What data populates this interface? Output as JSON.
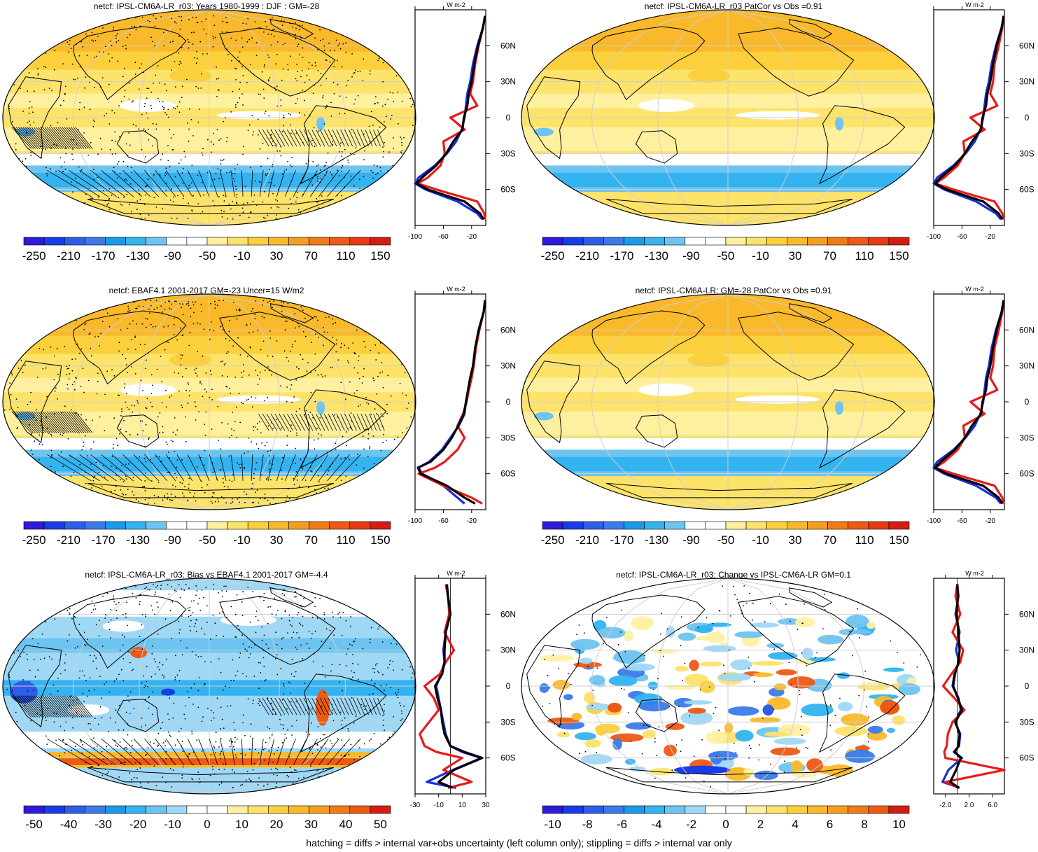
{
  "footer": "hatching = diffs > internal var+obs uncertainty (left column only); stippling = diffs > internal var only",
  "colors": {
    "main_scale": [
      "#2e1ad9",
      "#1a3ce6",
      "#2d5ee8",
      "#3a7be8",
      "#1a9bea",
      "#33b3f0",
      "#6ec4f0",
      "#ffffff",
      "#ffffff",
      "#fff0a0",
      "#fde36a",
      "#fbd03c",
      "#f9b92a",
      "#f59d20",
      "#f07c18",
      "#ec5a14",
      "#e83a12",
      "#d41c12"
    ],
    "diff_scale": [
      "#2e1ad9",
      "#1a3ce6",
      "#2d5ee8",
      "#3a7be8",
      "#1a9bea",
      "#33b3f0",
      "#6ec4f0",
      "#9fd8f5",
      "#ffffff",
      "#ffffff",
      "#fff0a0",
      "#fde36a",
      "#fbd03c",
      "#f9b92a",
      "#f59d20",
      "#f07c18",
      "#ec5a14",
      "#d41c12"
    ],
    "line_model": "#1a2fd6",
    "line_obs": "#e81a1a",
    "line_mean": "#000000",
    "land_outline": "#000000",
    "graticule": "#cfcfcf"
  },
  "chart_data": [
    {
      "type": "heatmap",
      "title": "netcf: IPSL-CM6A-LR_r03: Years 1980-1999 : DJF : GM=-28",
      "map_style": "main",
      "stipple": true,
      "hatch": true,
      "colorbar_labels": [
        "-250",
        "-210",
        "-170",
        "-130",
        "-90",
        "-50",
        "-10",
        "30",
        "70",
        "110",
        "150"
      ],
      "profile": {
        "units": "W m-2",
        "x_ticks": [
          "-100",
          "-60",
          "-20"
        ],
        "xlim": [
          -100,
          0
        ],
        "lat_labels": [
          "60N",
          "30N",
          "0",
          "30S",
          "60S"
        ],
        "lat": [
          85,
          75,
          60,
          45,
          30,
          20,
          10,
          0,
          -10,
          -20,
          -30,
          -40,
          -50,
          -55,
          -60,
          -70,
          -80,
          -85
        ],
        "model": [
          -1,
          -4,
          -12,
          -18,
          -22,
          -26,
          -28,
          -30,
          -34,
          -42,
          -55,
          -72,
          -95,
          -100,
          -85,
          -40,
          -12,
          -5
        ],
        "obs": [
          -1,
          -4,
          -10,
          -15,
          -18,
          -22,
          -12,
          -50,
          -30,
          -60,
          -58,
          -64,
          -82,
          -96,
          -70,
          -12,
          -2,
          -1
        ],
        "mean": [
          -1,
          -4,
          -11,
          -16,
          -20,
          -24,
          -26,
          -31,
          -33,
          -46,
          -56,
          -70,
          -90,
          -98,
          -82,
          -30,
          -8,
          -3
        ]
      }
    },
    {
      "type": "heatmap",
      "title": "netcf: IPSL-CM6A-LR_r03 PatCor vs Obs =0.91",
      "map_style": "main",
      "stipple": false,
      "hatch": false,
      "colorbar_labels": [
        "-250",
        "-210",
        "-170",
        "-130",
        "-90",
        "-50",
        "-10",
        "30",
        "70",
        "110",
        "150"
      ],
      "profile": {
        "units": "W m-2",
        "x_ticks": [
          "-100",
          "-60",
          "-20"
        ],
        "xlim": [
          -100,
          0
        ],
        "lat_labels": [
          "60N",
          "30N",
          "0",
          "30S",
          "60S"
        ],
        "lat": [
          85,
          75,
          60,
          45,
          30,
          20,
          10,
          0,
          -10,
          -20,
          -30,
          -40,
          -50,
          -55,
          -60,
          -70,
          -80,
          -85
        ],
        "model": [
          -1,
          -4,
          -12,
          -18,
          -22,
          -26,
          -28,
          -30,
          -34,
          -42,
          -55,
          -72,
          -95,
          -100,
          -85,
          -40,
          -12,
          -5
        ],
        "obs": [
          -1,
          -3,
          -8,
          -14,
          -16,
          -20,
          -10,
          -48,
          -28,
          -58,
          -56,
          -66,
          -85,
          -98,
          -72,
          -14,
          -3,
          -1
        ],
        "mean": [
          -1,
          -4,
          -11,
          -16,
          -20,
          -24,
          -26,
          -31,
          -33,
          -46,
          -56,
          -70,
          -90,
          -98,
          -82,
          -30,
          -8,
          -3
        ]
      }
    },
    {
      "type": "heatmap",
      "title": "netcf: EBAF4.1 2001-2017 GM=-23 Uncer=15 W/m2",
      "map_style": "obs",
      "stipple": true,
      "hatch": true,
      "colorbar_labels": [
        "-250",
        "-210",
        "-170",
        "-130",
        "-90",
        "-50",
        "-10",
        "30",
        "70",
        "110",
        "150"
      ],
      "profile": {
        "units": "W m-2",
        "x_ticks": [
          "-100",
          "-60",
          "-20"
        ],
        "xlim": [
          -100,
          0
        ],
        "lat_labels": [
          "60N",
          "30N",
          "0",
          "30S",
          "60S"
        ],
        "lat": [
          85,
          75,
          60,
          45,
          30,
          20,
          10,
          0,
          -10,
          -20,
          -30,
          -40,
          -50,
          -55,
          -60,
          -70,
          -80,
          -85
        ],
        "model": [
          -1,
          -3,
          -10,
          -15,
          -18,
          -22,
          -25,
          -28,
          -30,
          -38,
          -50,
          -62,
          -80,
          -95,
          -90,
          -60,
          -40,
          -30
        ],
        "obs": [
          -1,
          -3,
          -9,
          -14,
          -17,
          -20,
          -24,
          -27,
          -32,
          -40,
          -30,
          -40,
          -58,
          -72,
          -95,
          -60,
          -20,
          -5
        ],
        "mean": [
          -1,
          -3,
          -10,
          -15,
          -18,
          -22,
          -25,
          -28,
          -31,
          -39,
          -48,
          -60,
          -78,
          -96,
          -92,
          -55,
          -30,
          -15
        ]
      }
    },
    {
      "type": "heatmap",
      "title": "netcf: IPSL-CM6A-LR: GM=-28 PatCor vs Obs =0.91",
      "map_style": "main",
      "stipple": false,
      "hatch": false,
      "colorbar_labels": [
        "-250",
        "-210",
        "-170",
        "-130",
        "-90",
        "-50",
        "-10",
        "30",
        "70",
        "110",
        "150"
      ],
      "profile": {
        "units": "W m-2",
        "x_ticks": [
          "-100",
          "-60",
          "-20"
        ],
        "xlim": [
          -100,
          0
        ],
        "lat_labels": [
          "60N",
          "30N",
          "0",
          "30S",
          "60S"
        ],
        "lat": [
          85,
          75,
          60,
          45,
          30,
          20,
          10,
          0,
          -10,
          -20,
          -30,
          -40,
          -50,
          -55,
          -60,
          -70,
          -80,
          -85
        ],
        "model": [
          -1,
          -4,
          -12,
          -18,
          -22,
          -26,
          -28,
          -30,
          -34,
          -42,
          -55,
          -72,
          -95,
          -100,
          -85,
          -40,
          -12,
          -5
        ],
        "obs": [
          -1,
          -3,
          -8,
          -14,
          -16,
          -20,
          -10,
          -48,
          -28,
          -58,
          -56,
          -66,
          -85,
          -98,
          -72,
          -14,
          -3,
          -1
        ],
        "mean": [
          -1,
          -4,
          -11,
          -16,
          -20,
          -24,
          -26,
          -31,
          -33,
          -46,
          -56,
          -70,
          -90,
          -98,
          -82,
          -30,
          -8,
          -3
        ]
      }
    },
    {
      "type": "heatmap",
      "title": "netcf: IPSL-CM6A-LR_r03: Bias vs EBAF4.1 2001-2017 GM=-4.4",
      "map_style": "bias",
      "stipple": true,
      "hatch": true,
      "colorbar_labels": [
        "-50",
        "-40",
        "-30",
        "-20",
        "-10",
        "0",
        "10",
        "20",
        "30",
        "40",
        "50"
      ],
      "profile": {
        "units": "W m-2",
        "x_ticks": [
          "-30",
          "-10",
          "10",
          "30"
        ],
        "xlim": [
          -30,
          30
        ],
        "lat_labels": [
          "60N",
          "30N",
          "0",
          "30S",
          "60S"
        ],
        "lat": [
          85,
          75,
          60,
          45,
          30,
          20,
          10,
          0,
          -10,
          -20,
          -30,
          -40,
          -50,
          -55,
          -60,
          -70,
          -80,
          -85
        ],
        "model": [
          -3,
          -2,
          0,
          -4,
          -6,
          -5,
          -8,
          -12,
          -10,
          -8,
          -6,
          -4,
          0,
          10,
          26,
          2,
          -20,
          5
        ],
        "obs": [
          -4,
          -2,
          -1,
          -5,
          3,
          -4,
          -9,
          -22,
          -14,
          -10,
          -18,
          -26,
          -22,
          -12,
          10,
          -6,
          18,
          -2
        ],
        "mean": [
          -3,
          -2,
          0,
          -4,
          -5,
          -5,
          -7,
          -13,
          -11,
          -8,
          -7,
          -5,
          0,
          12,
          27,
          3,
          -10,
          2
        ]
      }
    },
    {
      "type": "heatmap",
      "title": "netcf: IPSL-CM6A-LR_r03: Change vs IPSL-CM6A-LR GM=0.1",
      "map_style": "change",
      "stipple": true,
      "hatch": false,
      "colorbar_labels": [
        "-10",
        "-8",
        "-6",
        "-4",
        "-2",
        "0",
        "2",
        "4",
        "6",
        "8",
        "10"
      ],
      "profile": {
        "units": "W m-2",
        "x_ticks": [
          "-2.0",
          "2.0",
          "6.0"
        ],
        "xlim": [
          -4,
          8
        ],
        "lat_labels": [
          "60N",
          "30N",
          "0",
          "30S",
          "60S"
        ],
        "lat": [
          85,
          75,
          60,
          45,
          30,
          20,
          10,
          0,
          -10,
          -20,
          -30,
          -40,
          -50,
          -55,
          -60,
          -70,
          -80,
          -85
        ],
        "model": [
          0,
          0.2,
          -0.3,
          0.4,
          -0.2,
          0.3,
          -0.5,
          -0.8,
          0.2,
          0.6,
          -0.4,
          0.5,
          0.3,
          -0.6,
          0.8,
          -1.5,
          -2.5,
          0.4
        ],
        "obs": [
          0,
          -0.3,
          0.5,
          -0.8,
          1.0,
          0.5,
          -1.0,
          -2.4,
          -0.5,
          1.2,
          -0.8,
          -1.6,
          -1.8,
          -2.2,
          -2.0,
          8,
          -2.0,
          0.2
        ],
        "mean": [
          0,
          0.1,
          -0.1,
          0.2,
          0.4,
          0.2,
          -0.4,
          -0.7,
          0.1,
          0.8,
          -0.3,
          0.4,
          0.2,
          -0.4,
          0.6,
          -0.2,
          -1.2,
          0.3
        ]
      }
    }
  ]
}
